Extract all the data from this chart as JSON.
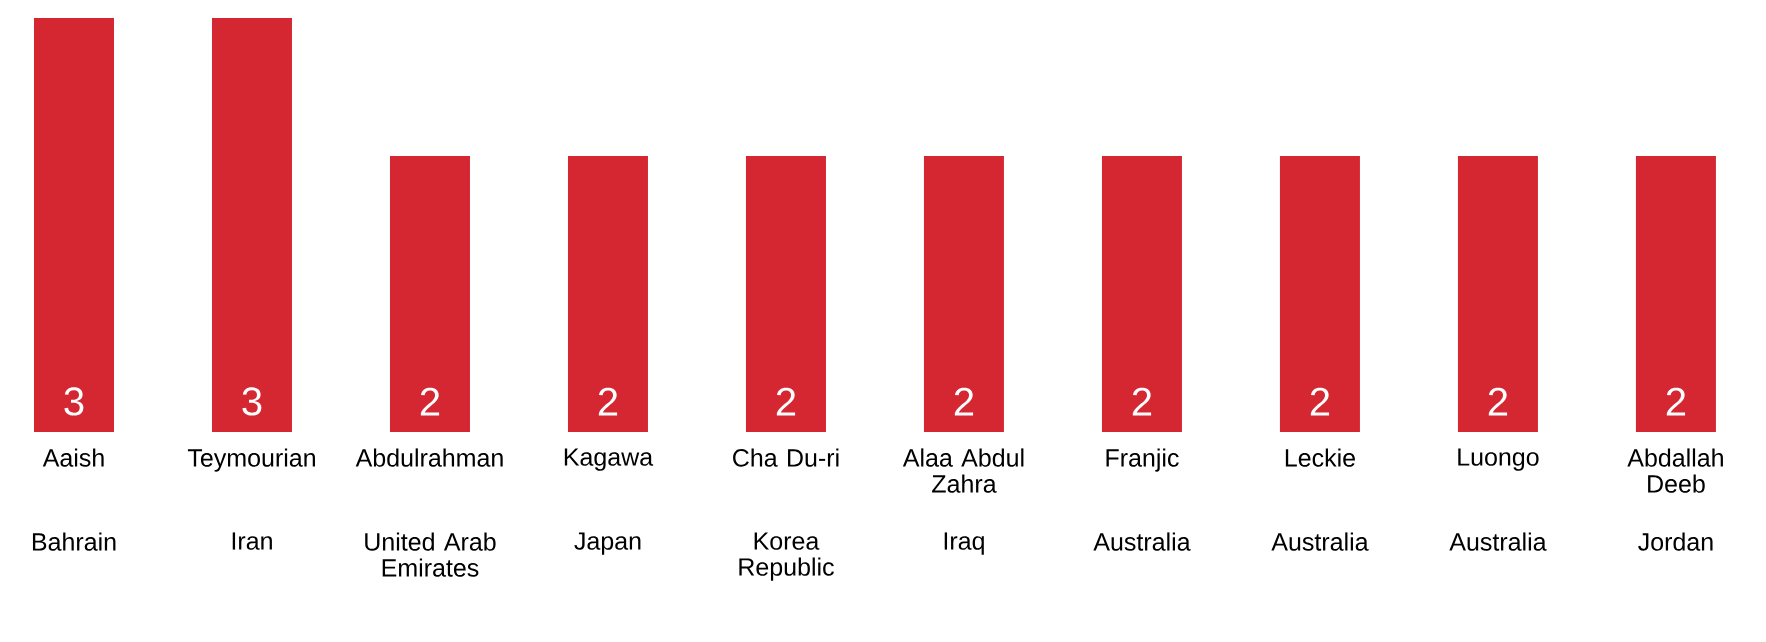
{
  "chart_data": {
    "type": "bar",
    "categories": [
      "Aaish",
      "Teymourian",
      "Abdulrahman",
      "Kagawa",
      "Cha Du-ri",
      "Alaa Abdul Zahra",
      "Franjic",
      "Leckie",
      "Luongo",
      "Abdallah Deeb"
    ],
    "values": [
      3,
      3,
      2,
      2,
      2,
      2,
      2,
      2,
      2,
      2
    ],
    "color": "#d52732",
    "data_labels": true,
    "annotations": [
      "Bahrain",
      "Iran",
      "United Arab Emirates",
      "Japan",
      "Korea Republic",
      "Iraq",
      "Australia",
      "Australia",
      "Australia",
      "Jordan"
    ]
  }
}
